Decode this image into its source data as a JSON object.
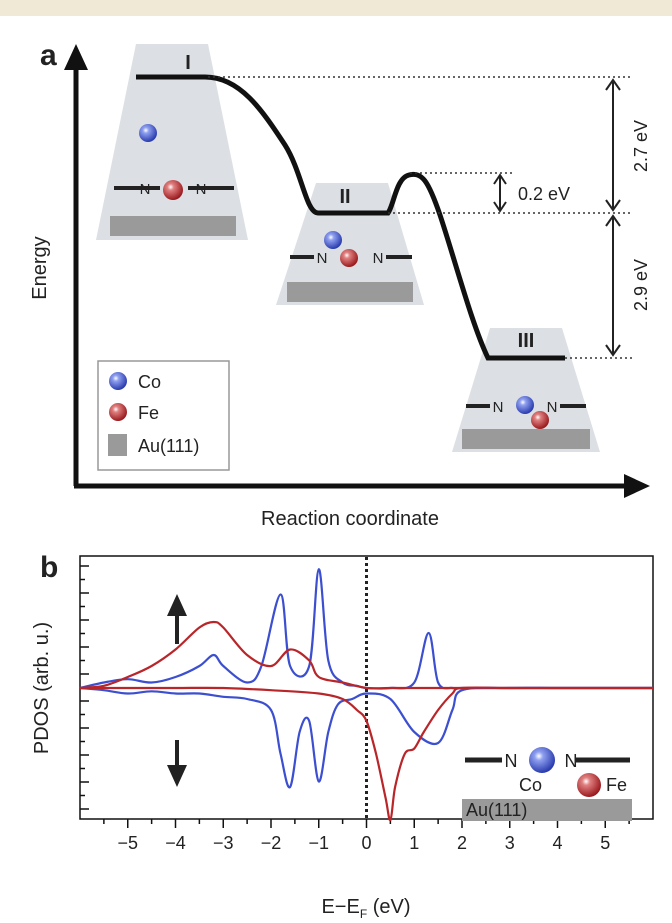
{
  "panel_a": {
    "letter": "a",
    "ylabel": "Energy",
    "xlabel": "Reaction coordinate",
    "states": [
      {
        "label": "I",
        "energy_ev": 5.6
      },
      {
        "label": "II",
        "energy_ev": 2.9
      },
      {
        "label": "III",
        "energy_ev": 0.0
      }
    ],
    "barrier_energy_ev": 3.1,
    "annotations": {
      "gap_top": "2.7 eV",
      "gap_bottom": "2.9 eV",
      "barrier": "0.2 eV"
    },
    "legend": {
      "co": "Co",
      "fe": "Fe",
      "au": "Au(111)"
    },
    "atom_letter": "N",
    "colors": {
      "co": "#3b4fd0",
      "fe": "#b8262a",
      "au": "#9a9a9a",
      "inset": "#dcdfe3",
      "curve": "#111111"
    }
  },
  "chart_data": {
    "type": "line",
    "panel": "b",
    "ylabel": "PDOS (arb. u.)",
    "xlabel": "E−E",
    "xlabel_sub": "F",
    "xlabel_unit": " (eV)",
    "xlim": [
      -6,
      6
    ],
    "xticks": [
      -5,
      -4,
      -3,
      -2,
      -1,
      0,
      1,
      2,
      3,
      4,
      5
    ],
    "ylim": [
      -1.3,
      1.3
    ],
    "fermi_line_x": 0,
    "inset": {
      "co": "Co",
      "fe": "Fe",
      "au": "Au(111)",
      "atom_letter": "N"
    },
    "series": [
      {
        "name": "Co spin-up",
        "color": "#3b4fd0",
        "x": [
          -6,
          -5.5,
          -5,
          -4.5,
          -4,
          -3.5,
          -3.2,
          -3,
          -2.5,
          -2.2,
          -1.8,
          -1.6,
          -1.2,
          -1,
          -0.8,
          -0.5,
          -0.2,
          0,
          0.5,
          1,
          1.3,
          1.5,
          1.8,
          2,
          3,
          4,
          5,
          6
        ],
        "y": [
          0,
          0.05,
          0.08,
          0.05,
          0.1,
          0.2,
          0.3,
          0.2,
          0.05,
          0.2,
          0.85,
          0.2,
          0.2,
          1.08,
          0.25,
          0.05,
          0.02,
          0,
          0,
          0.05,
          0.5,
          0.05,
          0,
          0,
          0,
          0,
          0,
          0
        ]
      },
      {
        "name": "Fe spin-up",
        "color": "#b8262a",
        "x": [
          -6,
          -5.5,
          -5,
          -4.5,
          -4,
          -3.5,
          -3.2,
          -3,
          -2.5,
          -2,
          -1.6,
          -1.2,
          -1,
          -0.5,
          0,
          0.5,
          1,
          1.5,
          2,
          3,
          4,
          5,
          6
        ],
        "y": [
          0,
          0.02,
          0.1,
          0.2,
          0.35,
          0.55,
          0.6,
          0.55,
          0.3,
          0.2,
          0.35,
          0.25,
          0.1,
          0.05,
          0,
          0,
          0,
          0,
          0,
          0,
          0,
          0,
          0
        ]
      },
      {
        "name": "Co spin-down",
        "color": "#3b4fd0",
        "x": [
          -6,
          -5.5,
          -5,
          -4.5,
          -4,
          -3.5,
          -3,
          -2.5,
          -2,
          -1.8,
          -1.6,
          -1.4,
          -1.2,
          -1,
          -0.8,
          -0.6,
          -0.3,
          0,
          0.5,
          1,
          1.5,
          1.8,
          2,
          3,
          4,
          5,
          6
        ],
        "y": [
          0,
          -0.02,
          -0.05,
          -0.03,
          -0.05,
          -0.05,
          -0.08,
          -0.1,
          -0.2,
          -0.6,
          -0.9,
          -0.4,
          -0.3,
          -0.85,
          -0.4,
          -0.15,
          -0.1,
          -0.05,
          -0.1,
          -0.4,
          -0.5,
          -0.2,
          -0.02,
          0,
          0,
          0,
          0
        ]
      },
      {
        "name": "Fe spin-down",
        "color": "#b8262a",
        "x": [
          -6,
          -5,
          -4,
          -3,
          -2,
          -1,
          -0.5,
          -0.2,
          0,
          0.2,
          0.4,
          0.5,
          0.6,
          0.8,
          1,
          1.2,
          1.5,
          1.8,
          2,
          3,
          4,
          5,
          6
        ],
        "y": [
          0,
          0,
          0,
          0,
          -0.02,
          -0.05,
          -0.1,
          -0.2,
          -0.3,
          -0.6,
          -1.0,
          -1.2,
          -0.9,
          -0.6,
          -0.55,
          -0.4,
          -0.2,
          -0.05,
          0,
          0,
          0,
          0,
          0
        ]
      }
    ]
  }
}
